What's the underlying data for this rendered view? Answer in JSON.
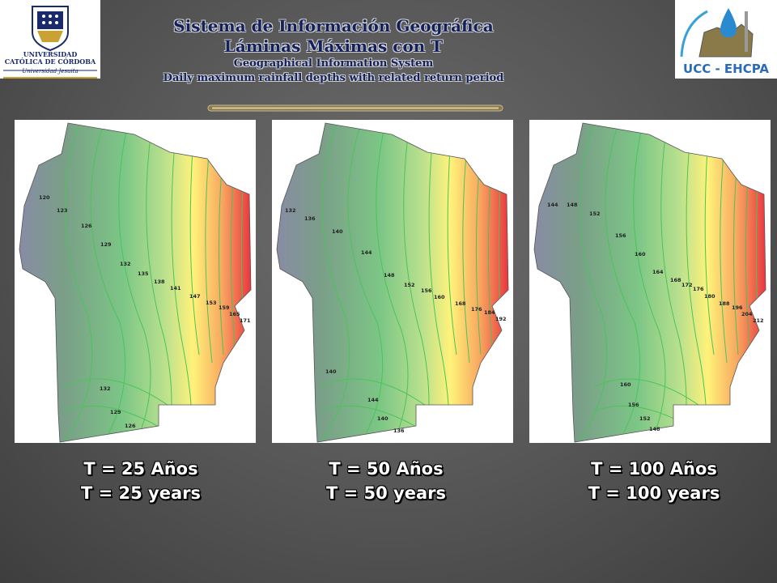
{
  "header": {
    "title_es": "Sistema de Información Geográfica",
    "subtitle_es": "Láminas Máximas con T",
    "title_en": "Geographical Information System",
    "subtitle_en": "Daily maximum rainfall depths with related return period"
  },
  "logos": {
    "left_line1": "UNIVERSIDAD",
    "left_line2": "CATÓLICA DE CÓRDOBA",
    "left_line3": "Universidad Jesuita",
    "right_text": "UCC - EHCPA"
  },
  "maps": [
    {
      "caption_es": "T = 25 Años",
      "caption_en": "T = 25 years",
      "isolines": [
        "120",
        "123",
        "126",
        "129",
        "132",
        "135",
        "138",
        "141",
        "147",
        "153",
        "159",
        "165",
        "171",
        "132",
        "129",
        "126"
      ]
    },
    {
      "caption_es": "T = 50 Años",
      "caption_en": "T = 50 years",
      "isolines": [
        "132",
        "136",
        "140",
        "144",
        "148",
        "152",
        "156",
        "160",
        "168",
        "176",
        "184",
        "192",
        "140",
        "144",
        "140",
        "136"
      ]
    },
    {
      "caption_es": "T = 100 Años",
      "caption_en": "T = 100 years",
      "isolines": [
        "144",
        "148",
        "152",
        "156",
        "160",
        "164",
        "168",
        "172",
        "176",
        "180",
        "188",
        "196",
        "204",
        "212",
        "160",
        "156",
        "152",
        "148"
      ]
    }
  ],
  "colors": {
    "title": "#13205a",
    "caption": "#ffffff",
    "low": "#8a8aa8",
    "mid": "#7fc98a",
    "high_yellow": "#fff27a",
    "high_red": "#e8233a"
  }
}
